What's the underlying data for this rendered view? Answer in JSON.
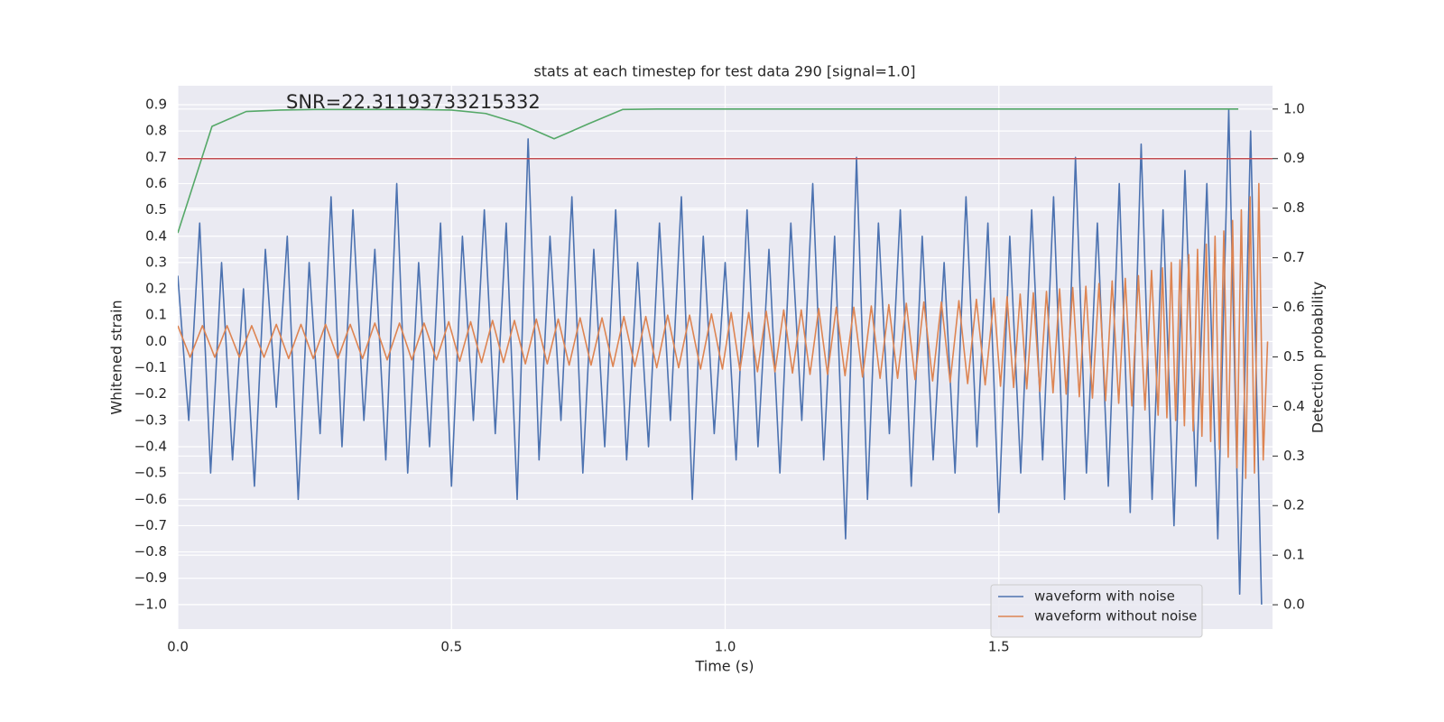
{
  "chart_data": {
    "type": "line",
    "title": "stats at each timestep for test data 290 [signal=1.0]",
    "xlabel": "Time (s)",
    "ylabel": "Whitened strain",
    "y2label": "Detection probability",
    "annotation": "SNR=22.31193733215332",
    "background": "#eaeaf2",
    "grid": true,
    "legend": "lower right",
    "xlim": [
      0,
      2.0
    ],
    "ylim": [
      -1.093,
      0.972
    ],
    "y2lim": [
      -0.049,
      1.047
    ],
    "xticks": [
      {
        "value": 0,
        "label": "0.0"
      },
      0.5,
      {
        "value": 1,
        "label": "1.0"
      },
      1.5
    ],
    "yticks": [
      {
        "value": -1,
        "label": "−1.0"
      },
      {
        "value": -0.9,
        "label": "−0.9"
      },
      {
        "value": -0.8,
        "label": "−0.8"
      },
      {
        "value": -0.7,
        "label": "−0.7"
      },
      {
        "value": -0.6,
        "label": "−0.6"
      },
      {
        "value": -0.5,
        "label": "−0.5"
      },
      {
        "value": -0.4,
        "label": "−0.4"
      },
      {
        "value": -0.3,
        "label": "−0.3"
      },
      {
        "value": -0.2,
        "label": "−0.2"
      },
      {
        "value": -0.1,
        "label": "−0.1"
      },
      {
        "value": 0,
        "label": "0.0"
      },
      0.1,
      0.2,
      0.3,
      0.4,
      0.5,
      0.6,
      0.7,
      0.8,
      0.9
    ],
    "y2ticks": [
      {
        "value": 0,
        "label": "0.0"
      },
      0.1,
      0.2,
      0.3,
      0.4,
      0.5,
      0.6,
      0.7,
      0.8,
      0.9,
      {
        "value": 1,
        "label": "1.0"
      }
    ],
    "series": [
      {
        "name": "waveform with noise",
        "color": "#4c72b0",
        "x": [
          0,
          0.02,
          0.04,
          0.06,
          0.08,
          0.1,
          0.12,
          0.14,
          0.16,
          0.18,
          0.2,
          0.22,
          0.24,
          0.26,
          0.28,
          0.3,
          0.32,
          0.34,
          0.36,
          0.38,
          0.4,
          0.42,
          0.44,
          0.46,
          0.48,
          0.5,
          0.52,
          0.54,
          0.56,
          0.58,
          0.6,
          0.62,
          0.64,
          0.66,
          0.68,
          0.7,
          0.72,
          0.74,
          0.76,
          0.78,
          0.8,
          0.82,
          0.84,
          0.86,
          0.88,
          0.9,
          0.92,
          0.94,
          0.96,
          0.98,
          1,
          1.02,
          1.04,
          1.06,
          1.08,
          1.1,
          1.12,
          1.14,
          1.16,
          1.18,
          1.2,
          1.22,
          1.24,
          1.26,
          1.28,
          1.3,
          1.32,
          1.34,
          1.36,
          1.38,
          1.4,
          1.42,
          1.44,
          1.46,
          1.48,
          1.5,
          1.52,
          1.54,
          1.56,
          1.58,
          1.6,
          1.62,
          1.64,
          1.66,
          1.68,
          1.7,
          1.72,
          1.74,
          1.76,
          1.78,
          1.8,
          1.82,
          1.84,
          1.86,
          1.88,
          1.9,
          1.92,
          1.94,
          1.96,
          1.98
        ],
        "values": [
          0.25,
          -0.3,
          0.45,
          -0.5,
          0.3,
          -0.45,
          0.2,
          -0.55,
          0.35,
          -0.25,
          0.4,
          -0.6,
          0.3,
          -0.35,
          0.55,
          -0.4,
          0.5,
          -0.3,
          0.35,
          -0.45,
          0.6,
          -0.5,
          0.3,
          -0.4,
          0.45,
          -0.55,
          0.4,
          -0.3,
          0.5,
          -0.35,
          0.45,
          -0.6,
          0.77,
          -0.45,
          0.4,
          -0.3,
          0.55,
          -0.5,
          0.35,
          -0.4,
          0.5,
          -0.45,
          0.3,
          -0.4,
          0.45,
          -0.3,
          0.55,
          -0.6,
          0.4,
          -0.35,
          0.3,
          -0.45,
          0.5,
          -0.4,
          0.35,
          -0.5,
          0.45,
          -0.3,
          0.6,
          -0.45,
          0.4,
          -0.75,
          0.7,
          -0.6,
          0.45,
          -0.35,
          0.5,
          -0.55,
          0.4,
          -0.45,
          0.3,
          -0.5,
          0.55,
          -0.4,
          0.45,
          -0.65,
          0.4,
          -0.5,
          0.5,
          -0.45,
          0.55,
          -0.6,
          0.7,
          -0.5,
          0.45,
          -0.55,
          0.6,
          -0.65,
          0.75,
          -0.6,
          0.5,
          -0.7,
          0.65,
          -0.55,
          0.6,
          -0.75,
          0.88,
          -0.96,
          0.8,
          -1.0
        ]
      },
      {
        "name": "waveform without noise",
        "color": "#dd8452",
        "x": [
          0,
          0.0225,
          0.045,
          0.0675,
          0.09,
          0.1125,
          0.135,
          0.1575,
          0.18,
          0.2025,
          0.225,
          0.2475,
          0.27,
          0.2925,
          0.315,
          0.3375,
          0.36,
          0.3825,
          0.405,
          0.4275,
          0.45,
          0.4725,
          0.495,
          0.515,
          0.535,
          0.555,
          0.575,
          0.595,
          0.615,
          0.635,
          0.655,
          0.675,
          0.695,
          0.715,
          0.735,
          0.755,
          0.775,
          0.795,
          0.815,
          0.835,
          0.855,
          0.875,
          0.895,
          0.915,
          0.935,
          0.955,
          0.975,
          0.995,
          1.011,
          1.027,
          1.043,
          1.059,
          1.075,
          1.091,
          1.107,
          1.123,
          1.139,
          1.155,
          1.171,
          1.187,
          1.203,
          1.219,
          1.235,
          1.251,
          1.267,
          1.283,
          1.299,
          1.315,
          1.331,
          1.347,
          1.363,
          1.379,
          1.395,
          1.411,
          1.427,
          1.443,
          1.459,
          1.475,
          1.491,
          1.503,
          1.515,
          1.527,
          1.539,
          1.551,
          1.563,
          1.575,
          1.587,
          1.599,
          1.611,
          1.623,
          1.635,
          1.647,
          1.659,
          1.671,
          1.683,
          1.695,
          1.707,
          1.719,
          1.731,
          1.743,
          1.755,
          1.767,
          1.779,
          1.791,
          1.799,
          1.807,
          1.815,
          1.823,
          1.831,
          1.839,
          1.847,
          1.855,
          1.863,
          1.871,
          1.879,
          1.887,
          1.895,
          1.903,
          1.911,
          1.919,
          1.927,
          1.935,
          1.943,
          1.951,
          1.959,
          1.967,
          1.975,
          1.983,
          1.991
        ],
        "values": [
          0.06,
          -0.06,
          0.06,
          -0.06,
          0.06,
          -0.06,
          0.06,
          -0.06,
          0.065,
          -0.065,
          0.065,
          -0.065,
          0.065,
          -0.065,
          0.065,
          -0.065,
          0.07,
          -0.07,
          0.07,
          -0.07,
          0.07,
          -0.07,
          0.075,
          -0.075,
          0.075,
          -0.08,
          0.08,
          -0.08,
          0.08,
          -0.085,
          0.085,
          -0.085,
          0.085,
          -0.09,
          0.09,
          -0.09,
          0.09,
          -0.095,
          0.095,
          -0.095,
          0.095,
          -0.1,
          0.1,
          -0.1,
          0.1,
          -0.105,
          0.105,
          -0.105,
          0.11,
          -0.11,
          0.11,
          -0.115,
          0.115,
          -0.115,
          0.12,
          -0.12,
          0.12,
          -0.125,
          0.125,
          -0.125,
          0.13,
          -0.13,
          0.13,
          -0.135,
          0.135,
          -0.14,
          0.14,
          -0.14,
          0.145,
          -0.145,
          0.15,
          -0.15,
          0.15,
          -0.155,
          0.155,
          -0.16,
          0.16,
          -0.165,
          0.165,
          -0.17,
          0.17,
          -0.175,
          0.18,
          -0.18,
          0.185,
          -0.19,
          0.19,
          -0.195,
          0.2,
          -0.2,
          0.205,
          -0.21,
          0.21,
          -0.215,
          0.22,
          -0.225,
          0.23,
          -0.235,
          0.24,
          -0.245,
          0.25,
          -0.26,
          0.27,
          -0.28,
          0.28,
          -0.29,
          0.3,
          -0.3,
          0.31,
          -0.32,
          0.33,
          -0.34,
          0.35,
          -0.36,
          0.37,
          -0.38,
          0.4,
          -0.41,
          0.42,
          -0.44,
          0.46,
          -0.48,
          0.5,
          -0.52,
          0.55,
          -0.5,
          0.6,
          -0.45,
          0.0
        ]
      },
      {
        "color": "#55a868",
        "axis": "y2",
        "x": [
          0,
          0.0625,
          0.125,
          0.1875,
          0.25,
          0.3125,
          0.375,
          0.4375,
          0.5,
          0.5625,
          0.625,
          0.6875,
          0.75,
          0.8125,
          0.875,
          0.9375,
          1,
          1.0625,
          1.125,
          1.1875,
          1.25,
          1.3125,
          1.375,
          1.4375,
          1.5,
          1.5625,
          1.625,
          1.6875,
          1.75,
          1.8125,
          1.875,
          1.9375
        ],
        "values": [
          0.75,
          0.965,
          0.995,
          0.998,
          0.999,
          0.999,
          0.999,
          0.999,
          0.998,
          0.991,
          0.97,
          0.94,
          0.97,
          0.999,
          1,
          1,
          1,
          1,
          1,
          1,
          1,
          1,
          1,
          1,
          1,
          1,
          1,
          1,
          1,
          1,
          1,
          1
        ]
      },
      {
        "color": "#c44e52",
        "axis": "y2",
        "x": [
          0,
          2.0
        ],
        "values": [
          0.9,
          0.9
        ]
      }
    ]
  }
}
